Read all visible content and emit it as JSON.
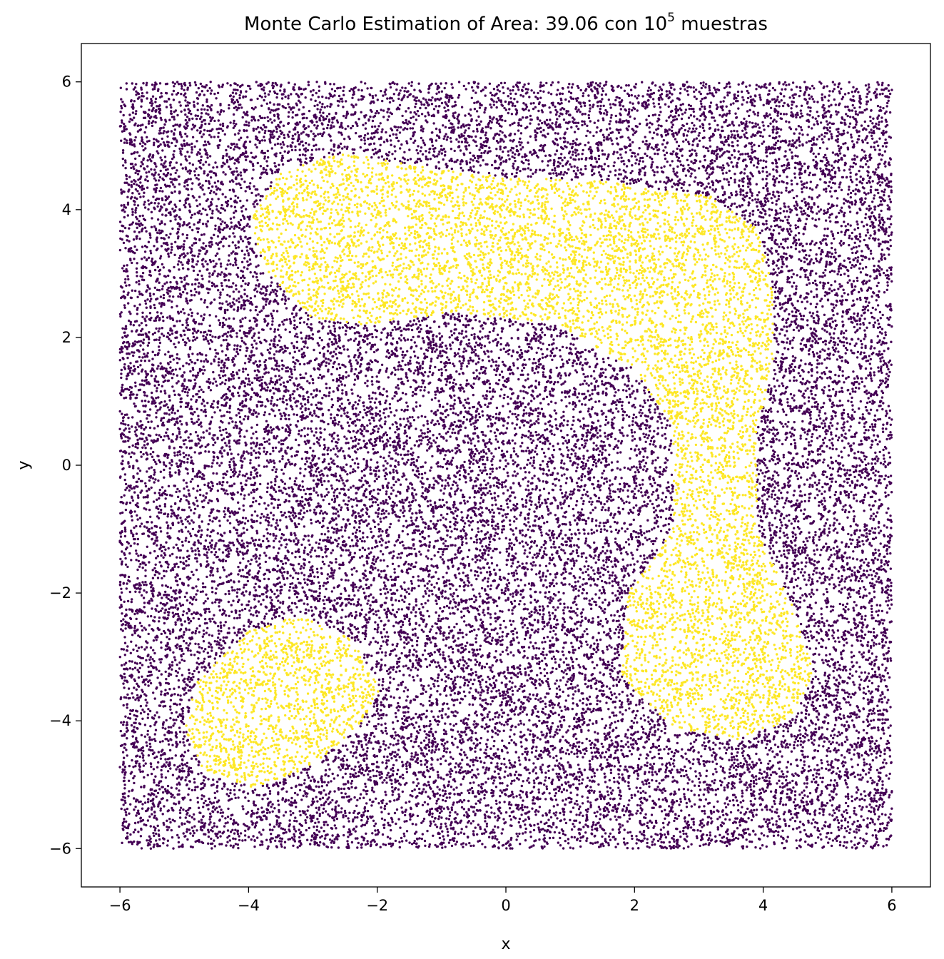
{
  "chart_data": {
    "type": "scatter",
    "title_main": "Monte Carlo Estimation of Area: 39.06 con 10",
    "title_sup": "5",
    "title_tail": " muestras",
    "xlabel": "x",
    "ylabel": "y",
    "xlim": [
      -6.6,
      6.6
    ],
    "ylim": [
      -6.6,
      6.6
    ],
    "xticks": [
      -6,
      -4,
      -2,
      0,
      2,
      4,
      6
    ],
    "yticks": [
      -6,
      -4,
      -2,
      0,
      2,
      4,
      6
    ],
    "xtick_labels": [
      "−6",
      "−4",
      "−2",
      "0",
      "2",
      "4",
      "6"
    ],
    "ytick_labels": [
      "−6",
      "−4",
      "−2",
      "0",
      "2",
      "4",
      "6"
    ],
    "grid": false,
    "sample_domain": {
      "x": [
        -6,
        6
      ],
      "y": [
        -6,
        6
      ]
    },
    "n_samples": 100000,
    "estimated_area": 39.06,
    "colors": {
      "outside": "#440154",
      "inside": "#fde725"
    },
    "regions": [
      {
        "name": "upper-right arm",
        "outline": [
          [
            -3.5,
            4.6
          ],
          [
            -2.5,
            4.9
          ],
          [
            -1.5,
            4.7
          ],
          [
            0,
            4.5
          ],
          [
            1.5,
            4.45
          ],
          [
            3.2,
            4.2
          ],
          [
            3.9,
            3.7
          ],
          [
            4.15,
            2.8
          ],
          [
            4.15,
            1.6
          ],
          [
            3.9,
            0.5
          ],
          [
            3.9,
            -1.0
          ],
          [
            4.5,
            -2.3
          ],
          [
            4.8,
            -3.3
          ],
          [
            4.4,
            -4.0
          ],
          [
            3.6,
            -4.3
          ],
          [
            2.6,
            -4.1
          ],
          [
            1.8,
            -3.3
          ],
          [
            1.9,
            -2.0
          ],
          [
            2.6,
            -1.0
          ],
          [
            2.6,
            0.6
          ],
          [
            2.0,
            1.5
          ],
          [
            0.8,
            2.2
          ],
          [
            -0.8,
            2.4
          ],
          [
            -2.2,
            2.2
          ],
          [
            -3.0,
            2.3
          ],
          [
            -3.7,
            3.0
          ],
          [
            -4.0,
            3.8
          ]
        ]
      },
      {
        "name": "lower-left blob",
        "outline": [
          [
            -4.0,
            -2.6
          ],
          [
            -3.2,
            -2.35
          ],
          [
            -2.4,
            -2.7
          ],
          [
            -1.95,
            -3.5
          ],
          [
            -2.3,
            -4.1
          ],
          [
            -3.0,
            -4.7
          ],
          [
            -3.9,
            -5.05
          ],
          [
            -4.7,
            -4.8
          ],
          [
            -5.0,
            -4.1
          ],
          [
            -4.8,
            -3.4
          ]
        ]
      }
    ]
  }
}
